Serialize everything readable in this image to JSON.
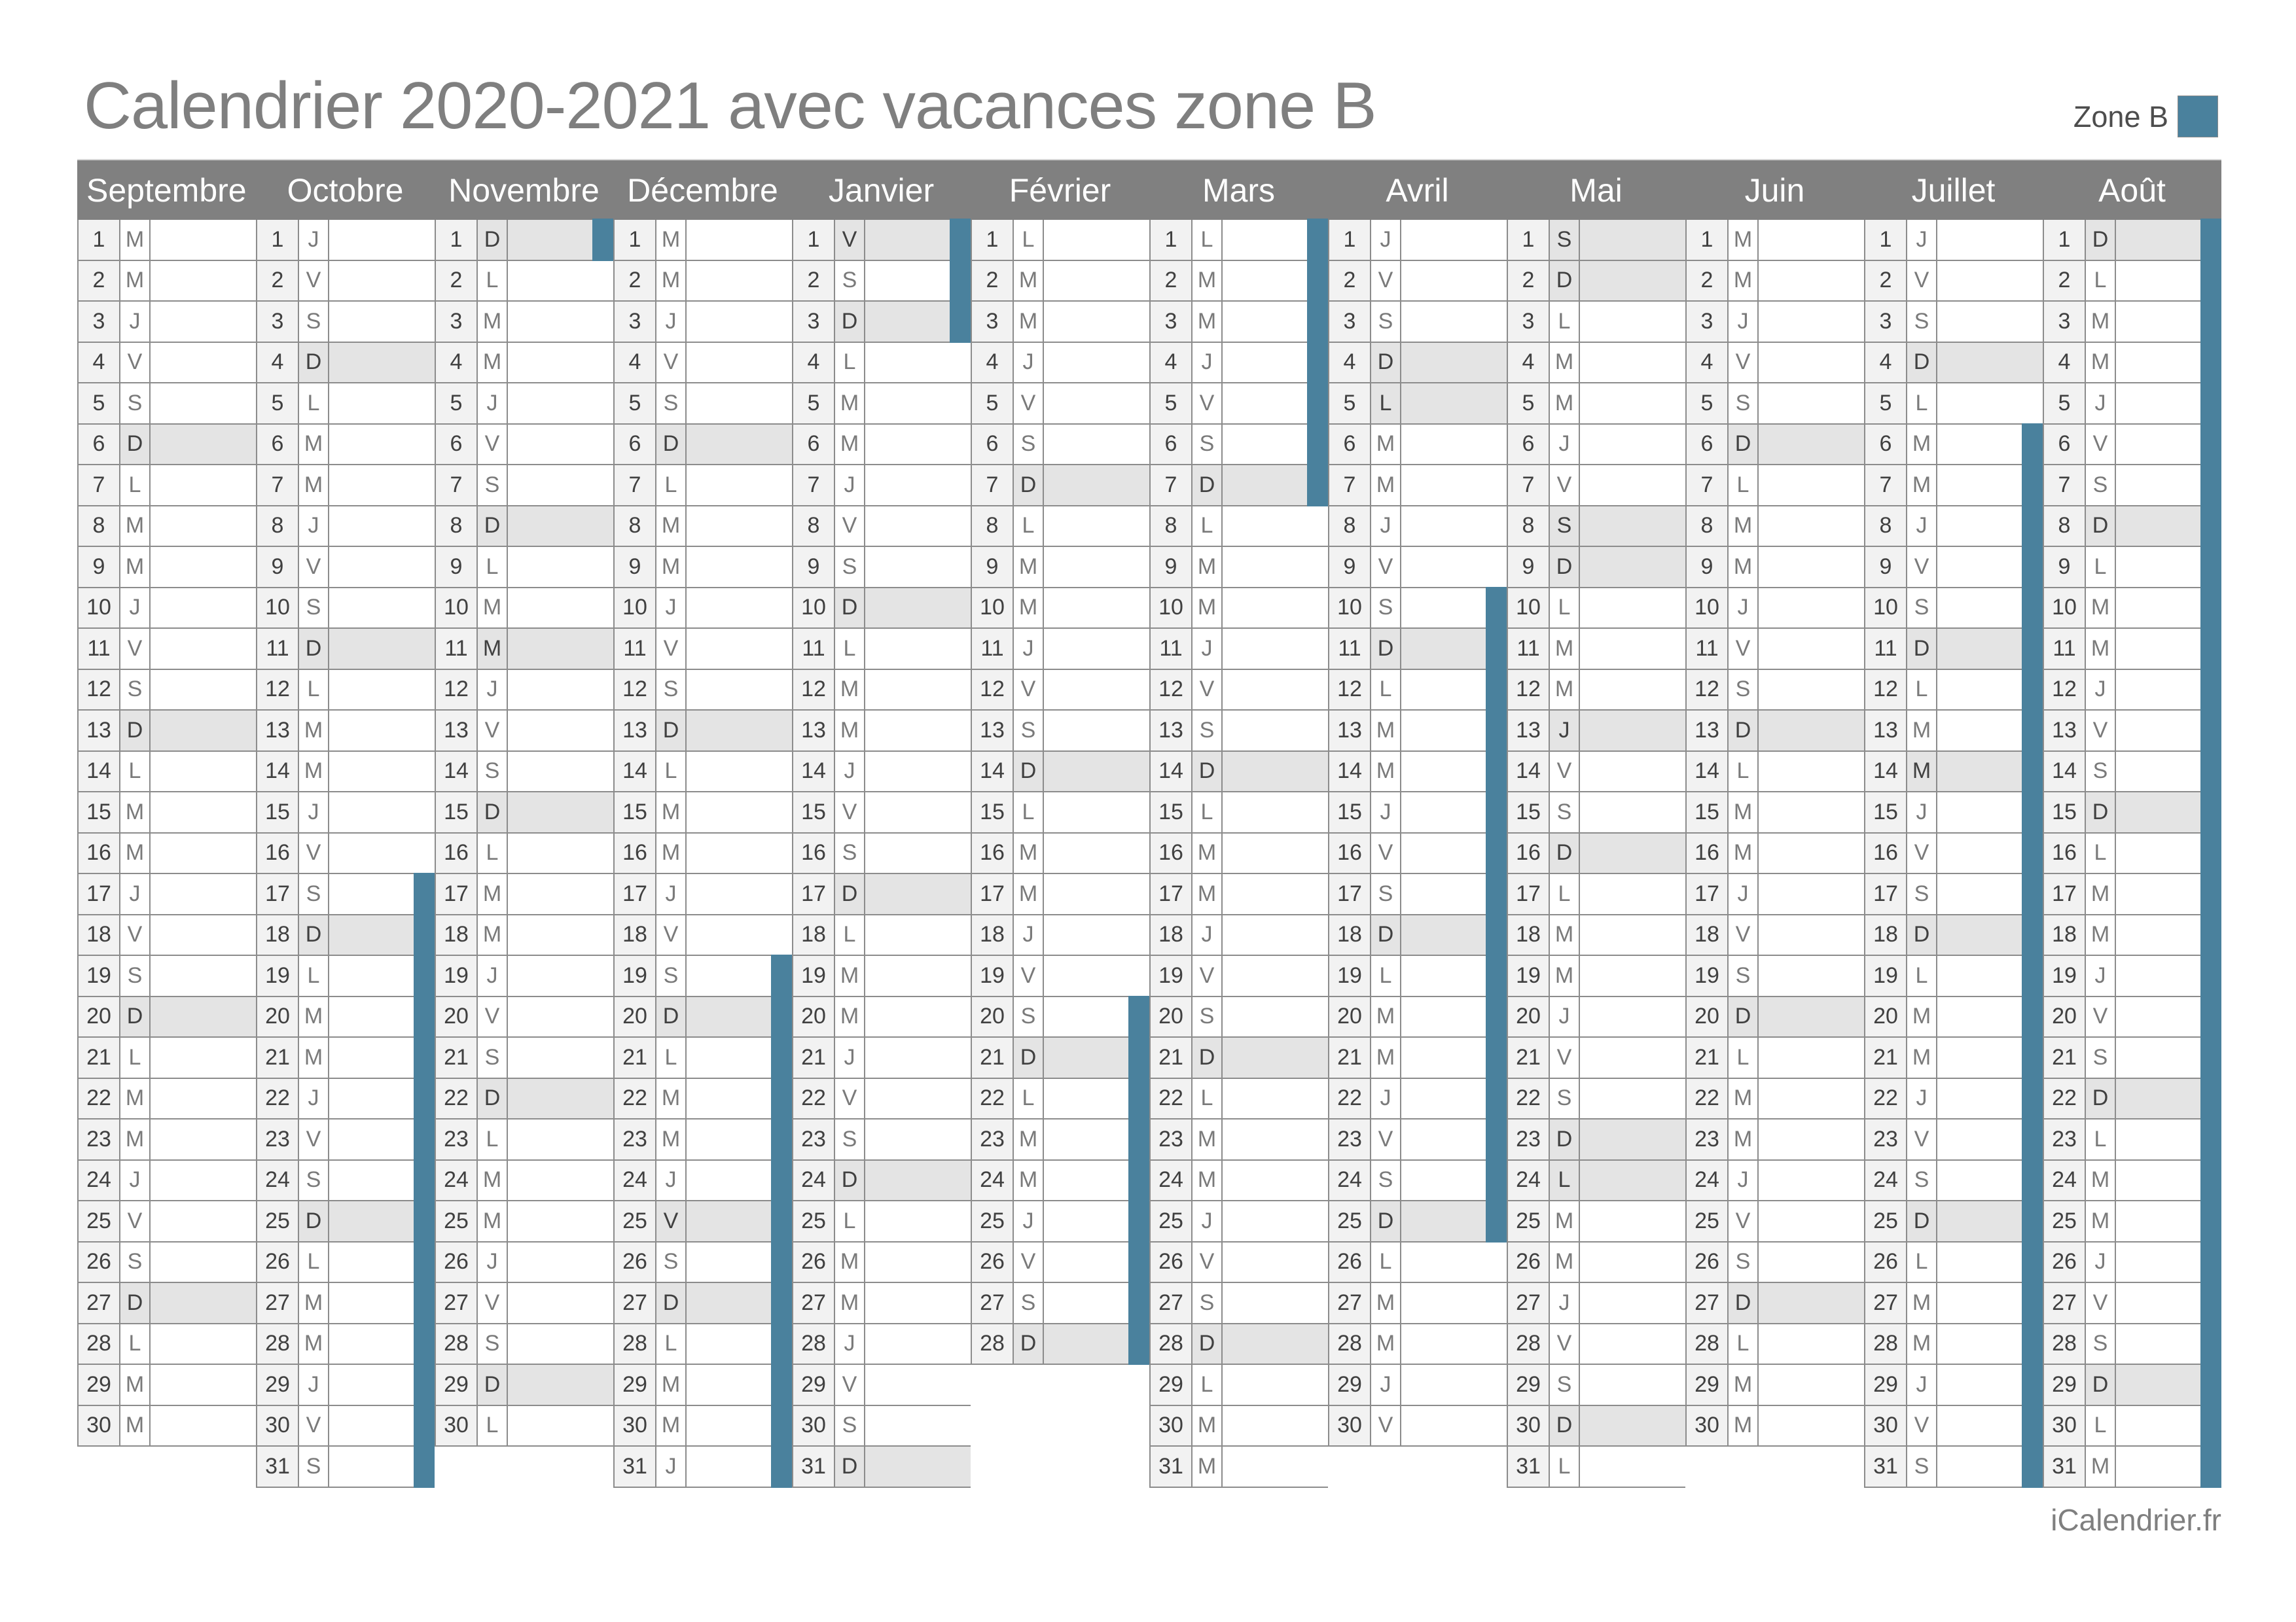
{
  "title": "Calendrier 2020-2021 avec vacances zone B",
  "legend": {
    "label": "Zone B",
    "color": "#4a819d"
  },
  "footer": "iCalendrier.fr",
  "colors": {
    "header_bg": "#808080",
    "weekend_shade": "#e4e4e4",
    "vacation_bar": "#4a819d",
    "number_bg": "#f2f2f2"
  },
  "months": [
    {
      "name": "Septembre",
      "days": [
        "M",
        "M",
        "J",
        "V",
        "S",
        "D",
        "L",
        "M",
        "M",
        "J",
        "V",
        "S",
        "D",
        "L",
        "M",
        "M",
        "J",
        "V",
        "S",
        "D",
        "L",
        "M",
        "M",
        "J",
        "V",
        "S",
        "D",
        "L",
        "M",
        "M"
      ],
      "shaded": [
        6,
        13,
        20,
        27
      ],
      "vacation": []
    },
    {
      "name": "Octobre",
      "days": [
        "J",
        "V",
        "S",
        "D",
        "L",
        "M",
        "M",
        "J",
        "V",
        "S",
        "D",
        "L",
        "M",
        "M",
        "J",
        "V",
        "S",
        "D",
        "L",
        "M",
        "M",
        "J",
        "V",
        "S",
        "D",
        "L",
        "M",
        "M",
        "J",
        "V",
        "S"
      ],
      "shaded": [
        4,
        11,
        18,
        25
      ],
      "vacation": [
        17,
        18,
        19,
        20,
        21,
        22,
        23,
        24,
        25,
        26,
        27,
        28,
        29,
        30,
        31
      ]
    },
    {
      "name": "Novembre",
      "days": [
        "D",
        "L",
        "M",
        "M",
        "J",
        "V",
        "S",
        "D",
        "L",
        "M",
        "M",
        "J",
        "V",
        "S",
        "D",
        "L",
        "M",
        "M",
        "J",
        "V",
        "S",
        "D",
        "L",
        "M",
        "M",
        "J",
        "V",
        "S",
        "D",
        "L"
      ],
      "shaded": [
        1,
        8,
        11,
        15,
        22,
        29
      ],
      "vacation": [
        1
      ]
    },
    {
      "name": "Décembre",
      "days": [
        "M",
        "M",
        "J",
        "V",
        "S",
        "D",
        "L",
        "M",
        "M",
        "J",
        "V",
        "S",
        "D",
        "L",
        "M",
        "M",
        "J",
        "V",
        "S",
        "D",
        "L",
        "M",
        "M",
        "J",
        "V",
        "S",
        "D",
        "L",
        "M",
        "M",
        "J"
      ],
      "shaded": [
        6,
        13,
        20,
        25,
        27
      ],
      "vacation": [
        19,
        20,
        21,
        22,
        23,
        24,
        25,
        26,
        27,
        28,
        29,
        30,
        31
      ]
    },
    {
      "name": "Janvier",
      "days": [
        "V",
        "S",
        "D",
        "L",
        "M",
        "M",
        "J",
        "V",
        "S",
        "D",
        "L",
        "M",
        "M",
        "J",
        "V",
        "S",
        "D",
        "L",
        "M",
        "M",
        "J",
        "V",
        "S",
        "D",
        "L",
        "M",
        "M",
        "J",
        "V",
        "S",
        "D"
      ],
      "shaded": [
        1,
        3,
        10,
        17,
        24,
        31
      ],
      "vacation": [
        1,
        2,
        3
      ]
    },
    {
      "name": "Février",
      "days": [
        "L",
        "M",
        "M",
        "J",
        "V",
        "S",
        "D",
        "L",
        "M",
        "M",
        "J",
        "V",
        "S",
        "D",
        "L",
        "M",
        "M",
        "J",
        "V",
        "S",
        "D",
        "L",
        "M",
        "M",
        "J",
        "V",
        "S",
        "D"
      ],
      "shaded": [
        7,
        14,
        21,
        28
      ],
      "vacation": [
        20,
        21,
        22,
        23,
        24,
        25,
        26,
        27,
        28
      ]
    },
    {
      "name": "Mars",
      "days": [
        "L",
        "M",
        "M",
        "J",
        "V",
        "S",
        "D",
        "L",
        "M",
        "M",
        "J",
        "V",
        "S",
        "D",
        "L",
        "M",
        "M",
        "J",
        "V",
        "S",
        "D",
        "L",
        "M",
        "M",
        "J",
        "V",
        "S",
        "D",
        "L",
        "M",
        "M"
      ],
      "shaded": [
        7,
        14,
        21,
        28
      ],
      "vacation": [
        1,
        2,
        3,
        4,
        5,
        6,
        7
      ]
    },
    {
      "name": "Avril",
      "days": [
        "J",
        "V",
        "S",
        "D",
        "L",
        "M",
        "M",
        "J",
        "V",
        "S",
        "D",
        "L",
        "M",
        "M",
        "J",
        "V",
        "S",
        "D",
        "L",
        "M",
        "M",
        "J",
        "V",
        "S",
        "D",
        "L",
        "M",
        "M",
        "J",
        "V"
      ],
      "shaded": [
        4,
        5,
        11,
        18,
        25
      ],
      "vacation": [
        10,
        11,
        12,
        13,
        14,
        15,
        16,
        17,
        18,
        19,
        20,
        21,
        22,
        23,
        24,
        25
      ]
    },
    {
      "name": "Mai",
      "days": [
        "S",
        "D",
        "L",
        "M",
        "M",
        "J",
        "V",
        "S",
        "D",
        "L",
        "M",
        "M",
        "J",
        "V",
        "S",
        "D",
        "L",
        "M",
        "M",
        "J",
        "V",
        "S",
        "D",
        "L",
        "M",
        "M",
        "J",
        "V",
        "S",
        "D",
        "L"
      ],
      "shaded": [
        1,
        2,
        8,
        9,
        13,
        16,
        23,
        24,
        30
      ],
      "vacation": []
    },
    {
      "name": "Juin",
      "days": [
        "M",
        "M",
        "J",
        "V",
        "S",
        "D",
        "L",
        "M",
        "M",
        "J",
        "V",
        "S",
        "D",
        "L",
        "M",
        "M",
        "J",
        "V",
        "S",
        "D",
        "L",
        "M",
        "M",
        "J",
        "V",
        "S",
        "D",
        "L",
        "M",
        "M"
      ],
      "shaded": [
        6,
        13,
        20,
        27
      ],
      "vacation": []
    },
    {
      "name": "Juillet",
      "days": [
        "J",
        "V",
        "S",
        "D",
        "L",
        "M",
        "M",
        "J",
        "V",
        "S",
        "D",
        "L",
        "M",
        "M",
        "J",
        "V",
        "S",
        "D",
        "L",
        "M",
        "M",
        "J",
        "V",
        "S",
        "D",
        "L",
        "M",
        "M",
        "J",
        "V",
        "S"
      ],
      "shaded": [
        4,
        11,
        14,
        18,
        25
      ],
      "vacation": [
        6,
        7,
        8,
        9,
        10,
        11,
        12,
        13,
        14,
        15,
        16,
        17,
        18,
        19,
        20,
        21,
        22,
        23,
        24,
        25,
        26,
        27,
        28,
        29,
        30,
        31
      ]
    },
    {
      "name": "Août",
      "days": [
        "D",
        "L",
        "M",
        "M",
        "J",
        "V",
        "S",
        "D",
        "L",
        "M",
        "M",
        "J",
        "V",
        "S",
        "D",
        "L",
        "M",
        "M",
        "J",
        "V",
        "S",
        "D",
        "L",
        "M",
        "M",
        "J",
        "V",
        "S",
        "D",
        "L",
        "M"
      ],
      "shaded": [
        1,
        8,
        15,
        22,
        29
      ],
      "vacation": [
        1,
        2,
        3,
        4,
        5,
        6,
        7,
        8,
        9,
        10,
        11,
        12,
        13,
        14,
        15,
        16,
        17,
        18,
        19,
        20,
        21,
        22,
        23,
        24,
        25,
        26,
        27,
        28,
        29,
        30,
        31
      ]
    }
  ]
}
